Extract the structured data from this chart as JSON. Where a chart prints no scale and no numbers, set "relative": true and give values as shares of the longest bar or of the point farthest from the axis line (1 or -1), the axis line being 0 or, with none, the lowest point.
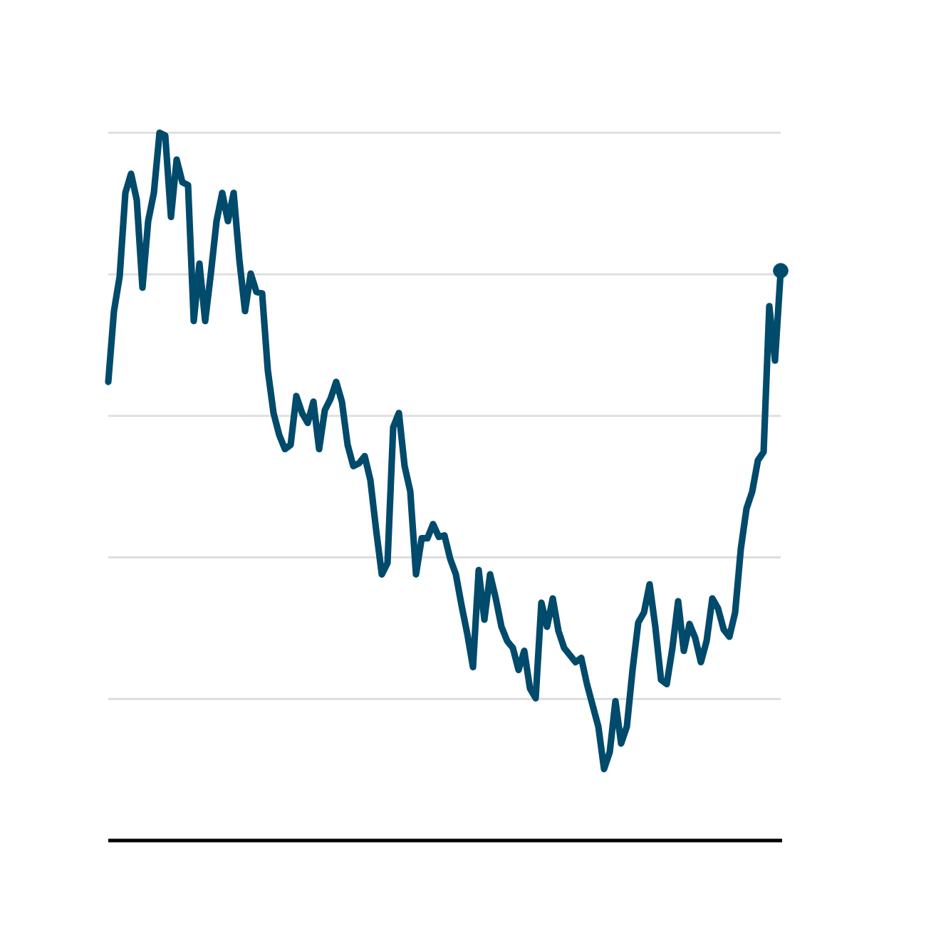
{
  "chart_data": {
    "type": "line",
    "relative": true,
    "categories": [
      null,
      null,
      null,
      null,
      null,
      null,
      null,
      null,
      null,
      null,
      null,
      null,
      null,
      null,
      null,
      null,
      null,
      null,
      null,
      null,
      null,
      null,
      null,
      null,
      null,
      null,
      null,
      null,
      null,
      null,
      null,
      null,
      null,
      null,
      null,
      null,
      null,
      null,
      null,
      null,
      null,
      null,
      null,
      null,
      null,
      null,
      null,
      null,
      null,
      null,
      null,
      null,
      null,
      null,
      null,
      null,
      null,
      null,
      null,
      null,
      null,
      null,
      null,
      null,
      null,
      null,
      null,
      null,
      null,
      null,
      null,
      null,
      null,
      null,
      null,
      null,
      null,
      null,
      null,
      null,
      null,
      null,
      null,
      null,
      null,
      null,
      null,
      null,
      null,
      null,
      null,
      null,
      null,
      null,
      null,
      null,
      null,
      null,
      null,
      null,
      null,
      null,
      null,
      null,
      null,
      null,
      null,
      null,
      null,
      null,
      null,
      null,
      null,
      null,
      null,
      null,
      null,
      null,
      null
    ],
    "series": [
      {
        "color": "#004a6b",
        "values": [
          0.648,
          0.748,
          0.797,
          0.915,
          0.942,
          0.905,
          0.781,
          0.875,
          0.915,
          1,
          0.996,
          0.881,
          0.962,
          0.93,
          0.926,
          0.734,
          0.815,
          0.734,
          0.801,
          0.875,
          0.915,
          0.875,
          0.915,
          0.821,
          0.748,
          0.801,
          0.775,
          0.773,
          0.664,
          0.604,
          0.573,
          0.553,
          0.559,
          0.628,
          0.604,
          0.59,
          0.62,
          0.553,
          0.608,
          0.624,
          0.648,
          0.62,
          0.559,
          0.529,
          0.533,
          0.543,
          0.509,
          0.439,
          0.376,
          0.392,
          0.584,
          0.604,
          0.529,
          0.493,
          0.376,
          0.427,
          0.427,
          0.447,
          0.429,
          0.431,
          0.398,
          0.376,
          0.332,
          0.292,
          0.245,
          0.382,
          0.312,
          0.376,
          0.342,
          0.302,
          0.282,
          0.272,
          0.241,
          0.268,
          0.215,
          0.201,
          0.336,
          0.302,
          0.342,
          0.296,
          0.272,
          0.262,
          0.252,
          0.258,
          0.221,
          0.191,
          0.161,
          0.101,
          0.125,
          0.197,
          0.137,
          0.161,
          0.241,
          0.308,
          0.322,
          0.362,
          0.302,
          0.227,
          0.221,
          0.272,
          0.338,
          0.268,
          0.306,
          0.286,
          0.252,
          0.282,
          0.342,
          0.328,
          0.298,
          0.288,
          0.322,
          0.412,
          0.469,
          0.493,
          0.537,
          0.549,
          0.755,
          0.678,
          0.805
        ]
      }
    ],
    "grid": "y"
  }
}
